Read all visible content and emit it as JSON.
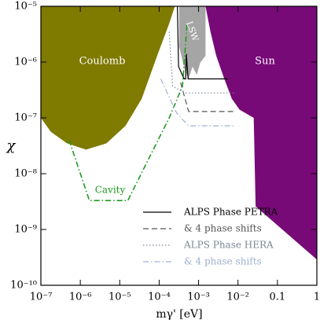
{
  "chart_data": {
    "type": "line",
    "x_label": "mγ' [eV]",
    "y_label": "χ",
    "xscale": "log",
    "yscale": "log",
    "xlim": [
      1e-07,
      1
    ],
    "ylim": [
      1e-10,
      1e-05
    ],
    "xticks": [
      {
        "value": 1e-07,
        "label": "10⁻⁷"
      },
      {
        "value": 1e-06,
        "label": "10⁻⁶"
      },
      {
        "value": 1e-05,
        "label": "10⁻⁵"
      },
      {
        "value": 0.0001,
        "label": "10⁻⁴"
      },
      {
        "value": 0.001,
        "label": "10⁻³"
      },
      {
        "value": 0.01,
        "label": "10⁻²"
      },
      0.1,
      1
    ],
    "yticks": [
      {
        "value": 1e-10,
        "label": "10⁻¹⁰"
      },
      {
        "value": 1e-09,
        "label": "10⁻⁹"
      },
      {
        "value": 1e-08,
        "label": "10⁻⁸"
      },
      {
        "value": 1e-07,
        "label": "10⁻⁷"
      },
      {
        "value": 1e-06,
        "label": "10⁻⁶"
      },
      {
        "value": 1e-05,
        "label": "10⁻⁵"
      }
    ],
    "regions": [
      {
        "name": "Coulomb",
        "color": "#7f7a00",
        "x": [
          1e-07,
          1e-07,
          1.8e-07,
          4.6e-07,
          1.4e-06,
          4.6e-06,
          1.4e-05,
          3.6e-05,
          8.9e-05,
          0.00018,
          0.00025
        ],
        "y": [
          1e-05,
          1e-07,
          5.6e-08,
          3.5e-08,
          2.7e-08,
          3.5e-08,
          7.2e-08,
          2.2e-07,
          1.3e-06,
          4.9e-06,
          1e-05
        ]
      },
      {
        "name": "Sun",
        "color": "#780a78",
        "x": [
          0.0015,
          0.002,
          0.0028,
          0.0045,
          0.007,
          0.011,
          0.025,
          0.028,
          1,
          1
        ],
        "y": [
          1e-05,
          3.5e-06,
          1.3e-06,
          5e-07,
          2.2e-07,
          1.4e-07,
          1e-07,
          2.6e-09,
          2.9e-10,
          1e-05
        ]
      },
      {
        "name": "LSW",
        "color": "#a5a5a5",
        "x": [
          0.00032,
          0.00032,
          0.00045,
          0.00056,
          0.0007,
          0.0009,
          0.0011,
          0.0015,
          0.0015
        ],
        "y": [
          1e-05,
          1.9e-06,
          7e-07,
          5e-07,
          8.3e-07,
          5.9e-07,
          9.7e-07,
          1.3e-06,
          1e-05
        ]
      }
    ],
    "cavity": {
      "name": "Cavity",
      "color": "#1f9a1f",
      "linestyle": "dashdot",
      "x": [
        5.2e-07,
        1.7e-06,
        1.6e-05,
        0.00018,
        0.00039,
        0.00051
      ],
      "y": [
        4e-08,
        3.3e-09,
        3.3e-09,
        1e-07,
        3.7e-07,
        4.9e-06
      ]
    },
    "series": [
      {
        "name": "ALPS Phase PETRA",
        "color": "#000000",
        "linestyle": "solid",
        "x": [
          0.00029,
          0.00031,
          0.00043,
          0.00047,
          0.00049,
          0.00054,
          0.0056
        ],
        "y": [
          1e-05,
          8.3e-07,
          5e-07,
          5e-07,
          1.4e-06,
          5e-07,
          5e-07
        ]
      },
      {
        "name": "& 4 phase shifts",
        "color": "#555555",
        "linestyle": "dashed",
        "x": [
          0.00035,
          0.00056,
          0.0089
        ],
        "y": [
          4.3e-07,
          1.3e-07,
          1.3e-07
        ]
      },
      {
        "name": "ALPS Phase HERA",
        "color": "#7a8794",
        "linestyle": "dotted",
        "x": [
          0.00018,
          0.00022,
          0.00045,
          0.0089
        ],
        "y": [
          3.5e-06,
          3.7e-07,
          2.8e-07,
          2.8e-07
        ]
      },
      {
        "name": "& 4 phase shifts",
        "color": "#9fb0d0",
        "linestyle": "dashdot",
        "x": [
          0.00011,
          0.00028,
          0.00056,
          0.0089
        ],
        "y": [
          5e-07,
          1.2e-07,
          7.2e-08,
          7.2e-08
        ]
      }
    ]
  }
}
